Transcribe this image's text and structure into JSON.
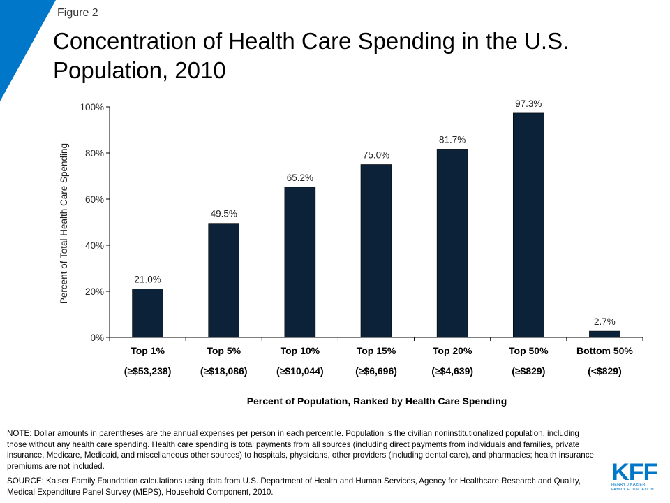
{
  "header": {
    "figure_label": "Figure 2",
    "title": "Concentration of Health Care Spending in the U.S. Population, 2010",
    "accent_color": "#0077c8"
  },
  "chart_data": {
    "type": "bar",
    "title": "Concentration of Health Care Spending in the U.S. Population, 2010",
    "categories": [
      "Top 1%",
      "Top 5%",
      "Top 10%",
      "Top 15%",
      "Top 20%",
      "Top 50%",
      "Bottom 50%"
    ],
    "category_sublabels": [
      "(≥$53,238)",
      "(≥$18,086)",
      "(≥$10,044)",
      "(≥$6,696)",
      "(≥$4,639)",
      "(≥$829)",
      "(<$829)"
    ],
    "values": [
      21.0,
      49.5,
      65.2,
      75.0,
      81.7,
      97.3,
      2.7
    ],
    "data_labels": [
      "21.0%",
      "49.5%",
      "65.2%",
      "75.0%",
      "81.7%",
      "97.3%",
      "2.7%"
    ],
    "xlabel": "Percent of Population, Ranked by Health Care Spending",
    "ylabel": "Percent of Total Health Care Spending",
    "ylim": [
      0,
      100
    ],
    "yticks": [
      0,
      20,
      40,
      60,
      80,
      100
    ],
    "ytick_labels": [
      "0%",
      "20%",
      "40%",
      "60%",
      "80%",
      "100%"
    ],
    "grid": false,
    "legend": "none",
    "bar_color": "#0b2239"
  },
  "footer": {
    "note": "NOTE: Dollar amounts in parentheses are the annual expenses per person in each percentile. Population is the civilian noninstitutionalized population, including those without any health care spending. Health care spending is total payments from all sources (including direct payments from individuals and families, private insurance, Medicare, Medicaid, and miscellaneous other sources) to hospitals, physicians, other providers (including dental care), and pharmacies; health insurance premiums are not included.",
    "source": "SOURCE: Kaiser Family Foundation calculations using data from U.S. Department of Health and Human Services, Agency for Healthcare Research and Quality, Medical Expenditure Panel Survey (MEPS), Household Component, 2010."
  },
  "logo": {
    "mark": "KFF",
    "line1": "HENRY J KAISER",
    "line2": "FAMILY FOUNDATION"
  }
}
